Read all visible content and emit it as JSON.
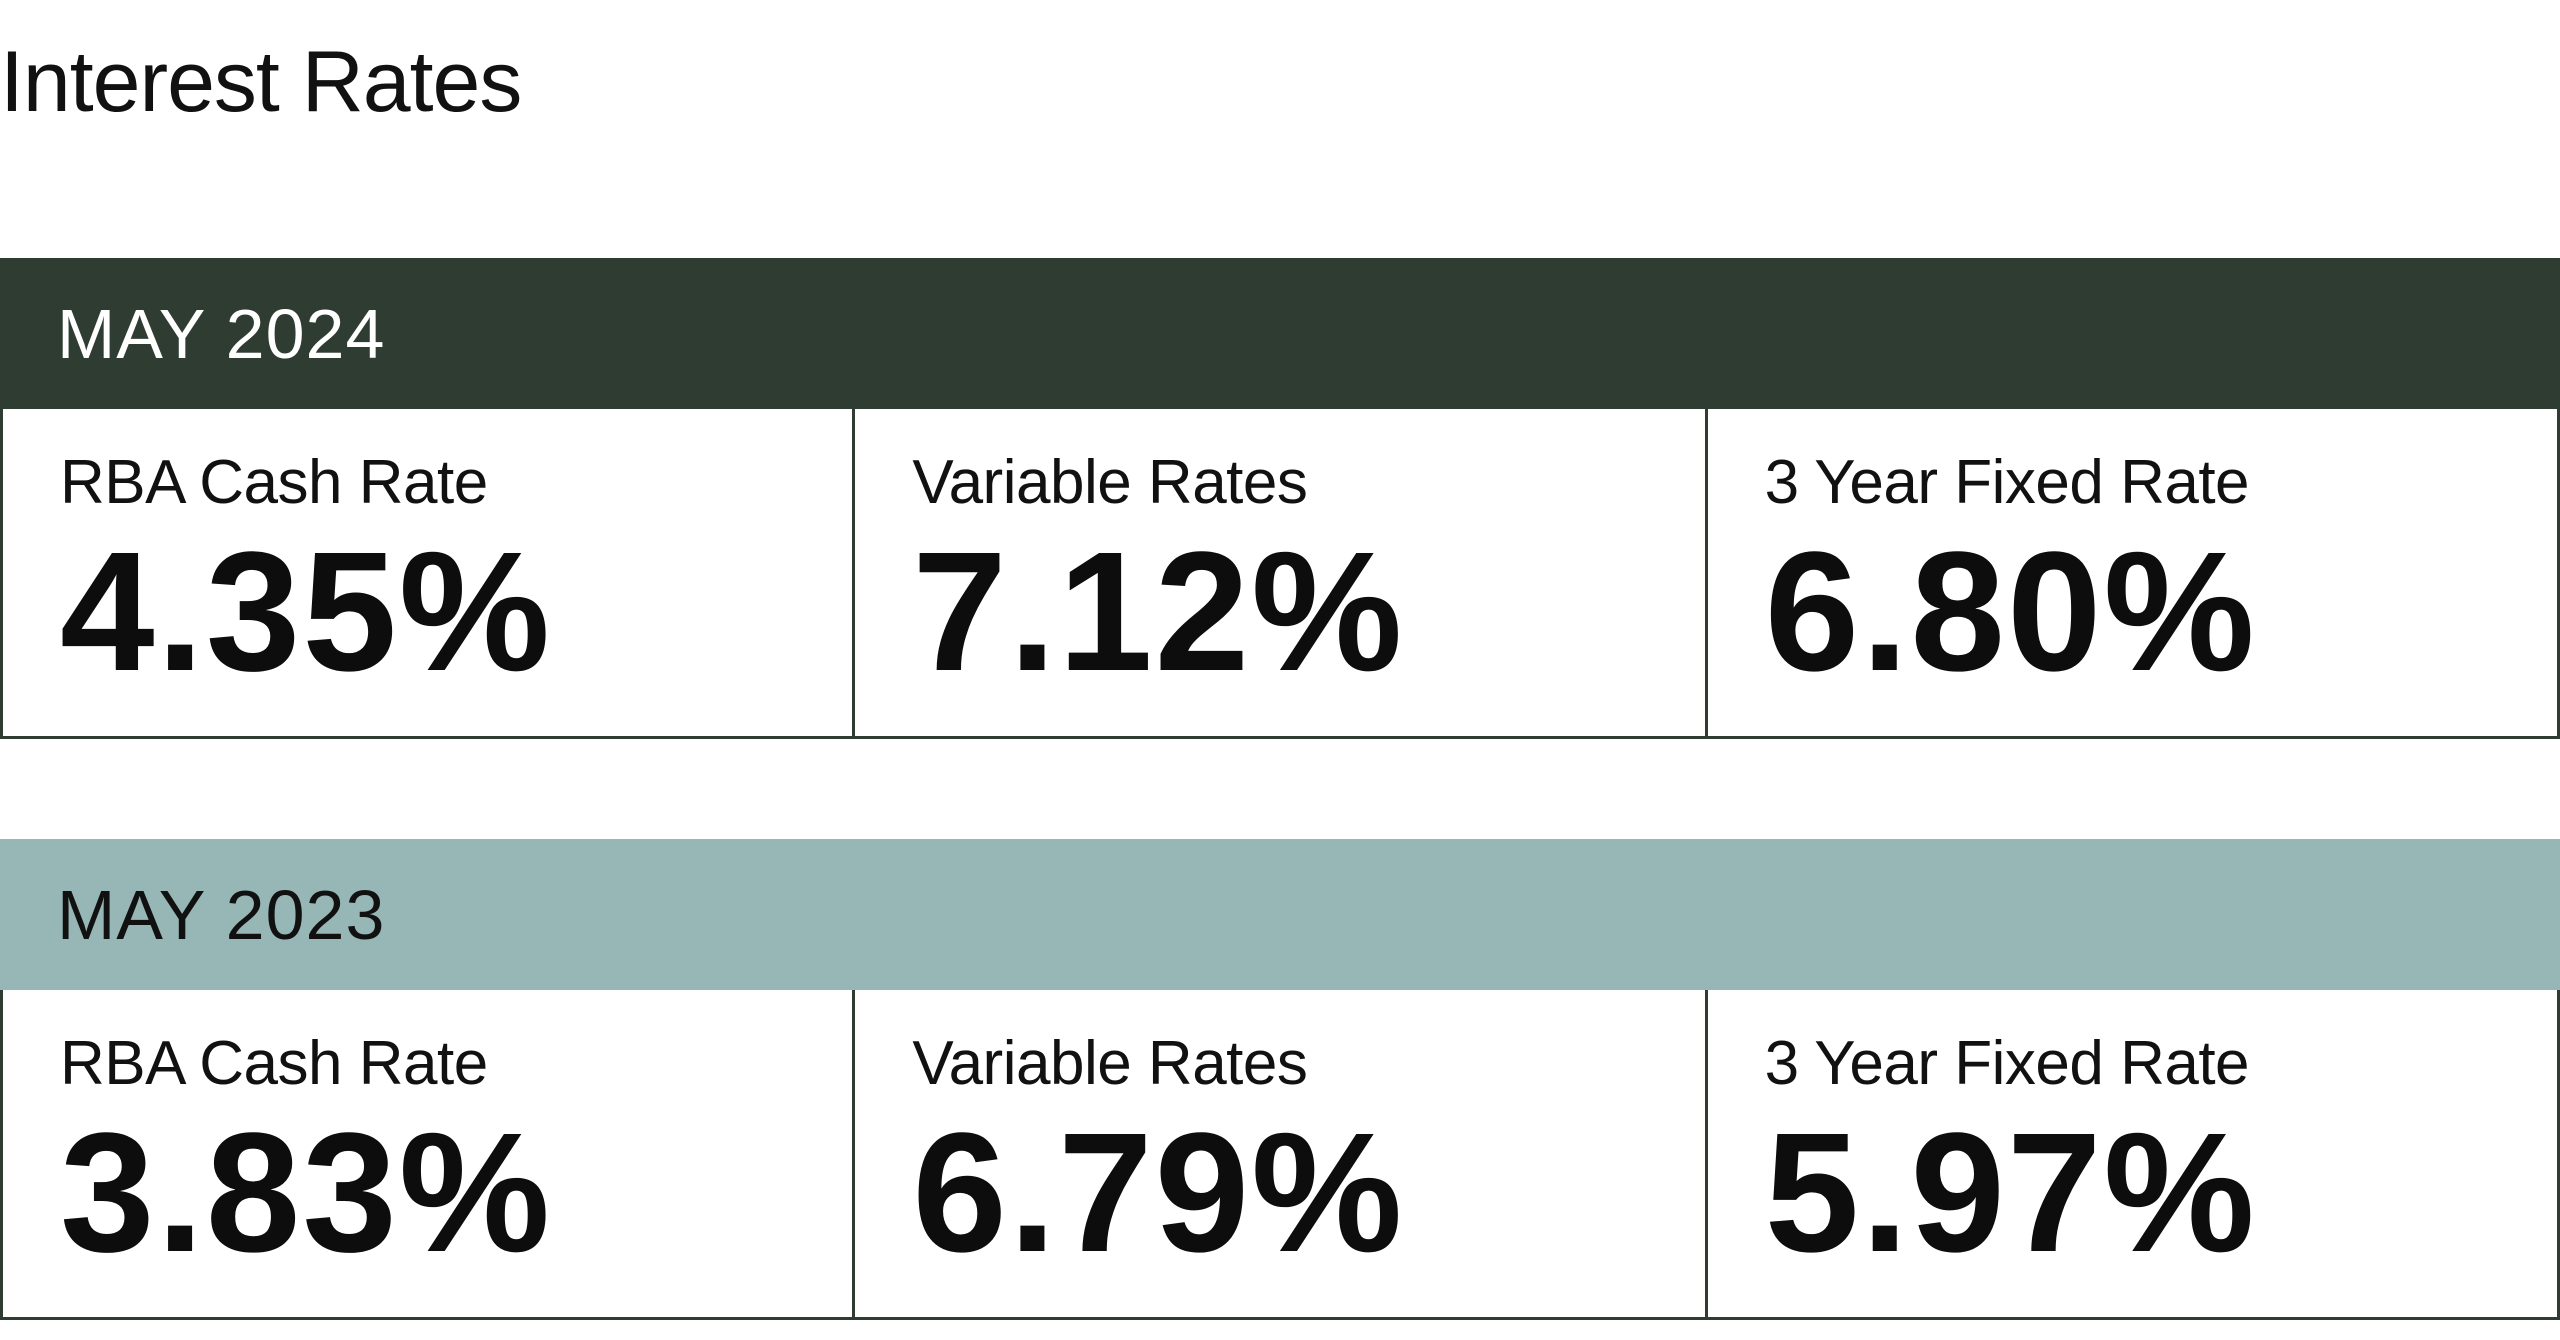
{
  "title": "Interest Rates",
  "colors": {
    "current_header_bg": "#2e3c31",
    "current_header_text": "#ffffff",
    "previous_header_bg": "#97b7b6",
    "previous_header_text": "#111111",
    "border": "#2e3c31"
  },
  "periods": [
    {
      "label": "MAY 2024",
      "rates": [
        {
          "label": "RBA Cash Rate",
          "value": "4.35%"
        },
        {
          "label": "Variable Rates",
          "value": "7.12%"
        },
        {
          "label": "3 Year Fixed Rate",
          "value": "6.80%"
        }
      ]
    },
    {
      "label": "MAY 2023",
      "rates": [
        {
          "label": "RBA Cash Rate",
          "value": "3.83%"
        },
        {
          "label": "Variable Rates",
          "value": "6.79%"
        },
        {
          "label": "3 Year Fixed Rate",
          "value": "5.97%"
        }
      ]
    }
  ]
}
